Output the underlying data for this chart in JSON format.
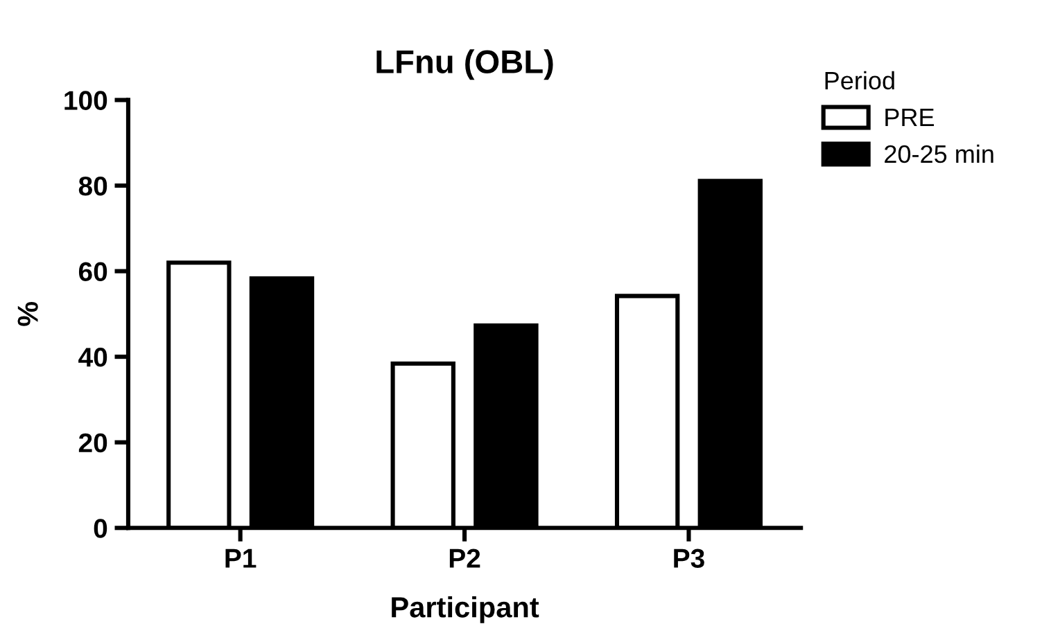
{
  "chart_data": {
    "type": "bar",
    "title": "LFnu (OBL)",
    "xlabel": "Participant",
    "ylabel": "%",
    "legend_title": "Period",
    "categories": [
      "P1",
      "P2",
      "P3"
    ],
    "series": [
      {
        "name": "PRE",
        "color": "#ffffff",
        "values": [
          62,
          38.4,
          54.2
        ]
      },
      {
        "name": "20-25 min",
        "color": "#000000",
        "values": [
          58.3,
          47.3,
          81.1
        ]
      }
    ],
    "ylim": [
      0,
      100
    ],
    "yticks": [
      0,
      20,
      40,
      60,
      80,
      100
    ],
    "grid": false,
    "legend": "top right"
  }
}
